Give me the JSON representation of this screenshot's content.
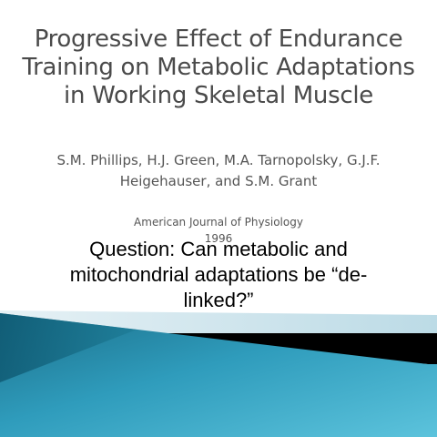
{
  "slide": {
    "title": "Progressive Effect of Endurance Training on Metabolic Adaptations in Working Skeletal Muscle",
    "authors": "S.M. Phillips, H.J. Green, M.A. Tarnopolsky, G.J.F. Heigehauser, and S.M. Grant",
    "journal": "American Journal of Physiology",
    "year": "1996",
    "question": "Question: Can metabolic and mitochondrial adaptations be “de-linked?”"
  },
  "colors": {
    "title_text": "#4a4a4a",
    "body_text": "#555555",
    "question_text": "#000000",
    "teal_dark": "#1e7d98",
    "teal_light": "#5cc3dc",
    "pale_blue": "#cfe6ee",
    "black_band": "#000000"
  }
}
